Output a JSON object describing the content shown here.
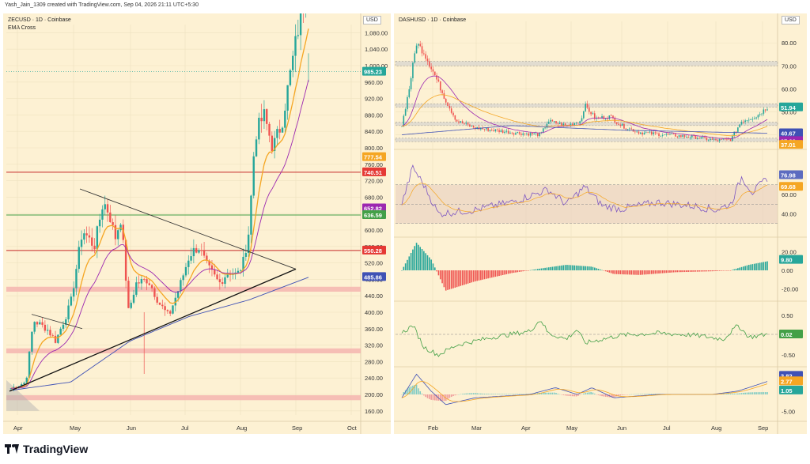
{
  "header": {
    "credit": "Yash_Jain_1309 created with TradingView.com, Sep 04, 2026 21:11 UTC+5:30"
  },
  "footer": {
    "brand": "TradingView"
  },
  "left": {
    "title": "ZECUSD · 1D · Coinbase",
    "indicator": "EMA Cross",
    "currency": "USD",
    "y_ticks": [
      160,
      200,
      240,
      280,
      320,
      360,
      400,
      440,
      480,
      520,
      560,
      600,
      640,
      680,
      720,
      760,
      800,
      840,
      880,
      920,
      960,
      1000,
      1040,
      1080
    ],
    "y_tick_labels": [
      "160.00",
      "200.00",
      "240.00",
      "280.00",
      "320.00",
      "360.00",
      "400.00",
      "440.00",
      "480.00",
      "520.00",
      "560.00",
      "600.00",
      "640.00",
      "680.00",
      "720.00",
      "760.00",
      "800.00",
      "840.00",
      "880.00",
      "920.00",
      "960.00",
      "1,000.00",
      "1,040.00",
      "1,080.00"
    ],
    "x_labels": [
      "Apr",
      "May",
      "Jun",
      "Jul",
      "Aug",
      "Sep",
      "Oct"
    ],
    "tags": [
      {
        "value": 985.23,
        "label": "985.23",
        "color": "#26a69a"
      },
      {
        "value": 777.54,
        "label": "777.54",
        "color": "#f5a623"
      },
      {
        "value": 740.51,
        "label": "740.51",
        "color": "#e53935"
      },
      {
        "value": 652.82,
        "label": "652.82",
        "color": "#9c27b0"
      },
      {
        "value": 636.59,
        "label": "636.59",
        "color": "#43a047"
      },
      {
        "value": 550.28,
        "label": "550.28",
        "color": "#e53935"
      },
      {
        "value": 485.86,
        "label": "485.86",
        "color": "#3f51b5"
      }
    ],
    "levels": [
      {
        "value": 740.51,
        "color": "#c62828"
      },
      {
        "value": 636.59,
        "color": "#43a047"
      },
      {
        "value": 550.28,
        "color": "#c62828"
      }
    ],
    "zones": [
      [
        450,
        462
      ],
      [
        300,
        312
      ],
      [
        186,
        198
      ]
    ]
  },
  "right": {
    "title": "DASHUSD · 1D · Coinbase",
    "currency": "USD",
    "y_ticks": [
      40,
      50,
      60,
      70,
      80
    ],
    "y_tick_labels": [
      "40.00",
      "50.00",
      "60.00",
      "70.00",
      "80.00"
    ],
    "x_labels": [
      "Feb",
      "Mar",
      "Apr",
      "May",
      "Jun",
      "Jul",
      "Aug",
      "Sep"
    ],
    "tags": [
      {
        "value": 51.94,
        "label": "51.94",
        "color": "#26a69a"
      },
      {
        "value": 40.67,
        "label": "40.67",
        "color": "#3f51b5"
      },
      {
        "value": 37.26,
        "label": "37.26",
        "color": "#9c27b0"
      },
      {
        "value": 37.01,
        "label": "37.01",
        "color": "#f5a623"
      }
    ],
    "rsi": {
      "ticks": [
        "60.00",
        "40.00"
      ],
      "tags": [
        {
          "label": "76.98",
          "color": "#5c6bc0"
        },
        {
          "label": "69.68",
          "color": "#f5a623"
        }
      ]
    },
    "macd": {
      "ticks": [
        "20.00",
        "0.00",
        "-20.00"
      ],
      "tag": {
        "label": "9.80",
        "color": "#26a69a"
      }
    },
    "osc": {
      "ticks": [
        "0.50",
        "-0.50"
      ],
      "tag": {
        "label": "0.02",
        "color": "#43a047"
      }
    },
    "stoch": {
      "ticks": [
        "5.00",
        "-5.00"
      ],
      "tags": [
        {
          "label": "3.82",
          "color": "#3f51b5"
        },
        {
          "label": "2.77",
          "color": "#f5a623"
        },
        {
          "label": "1.05",
          "color": "#26a69a"
        }
      ]
    }
  },
  "chart_data": [
    {
      "type": "candlestick",
      "title": "ZECUSD · 1D · Coinbase",
      "x_axis": [
        "Apr",
        "May",
        "Jun",
        "Jul",
        "Aug",
        "Sep",
        "Oct"
      ],
      "ylim": [
        150,
        1100
      ],
      "approx_closes": {
        "Apr": 215,
        "mid-Apr": 380,
        "May": 470,
        "mid-May": 660,
        "Jun": 560,
        "mid-Jun": 400,
        "Jul": 380,
        "mid-Jul": 560,
        "Aug": 480,
        "mid-Aug": 520,
        "late-Aug": 840,
        "Sep": 985.23
      },
      "last_price": 985.23,
      "ema_fast": 777.54,
      "ema_slow": 652.82,
      "ema_long": 485.86,
      "horizontal_levels": [
        740.51,
        636.59,
        550.28
      ],
      "support_zones": [
        [
          450,
          462
        ],
        [
          300,
          312
        ],
        [
          186,
          198
        ]
      ],
      "pattern": "symmetrical triangle breakout"
    },
    {
      "type": "candlestick",
      "title": "DASHUSD · 1D · Coinbase",
      "x_axis": [
        "Feb",
        "Mar",
        "Apr",
        "May",
        "Jun",
        "Jul",
        "Aug",
        "Sep"
      ],
      "ylim": [
        35,
        88
      ],
      "approx_closes": {
        "mid-Jan": 44,
        "late-Jan": 80,
        "Feb": 45,
        "Mar": 38,
        "Apr": 40,
        "May": 52,
        "Jun": 40,
        "Jul": 38,
        "Aug": 37,
        "late-Aug": 48,
        "Sep": 51.94
      },
      "last_price": 51.94,
      "moving_averages": [
        40.67,
        37.26,
        37.01
      ],
      "resistance_zones": [
        [
          70,
          72
        ],
        [
          52,
          53.5
        ],
        [
          44,
          45.5
        ],
        [
          37,
          38.5
        ]
      ],
      "rsi_last": [
        76.98,
        69.68
      ],
      "macd_last": 9.8,
      "oscillator_last": 0.02,
      "stoch_last": [
        3.82,
        2.77,
        1.05
      ]
    }
  ]
}
